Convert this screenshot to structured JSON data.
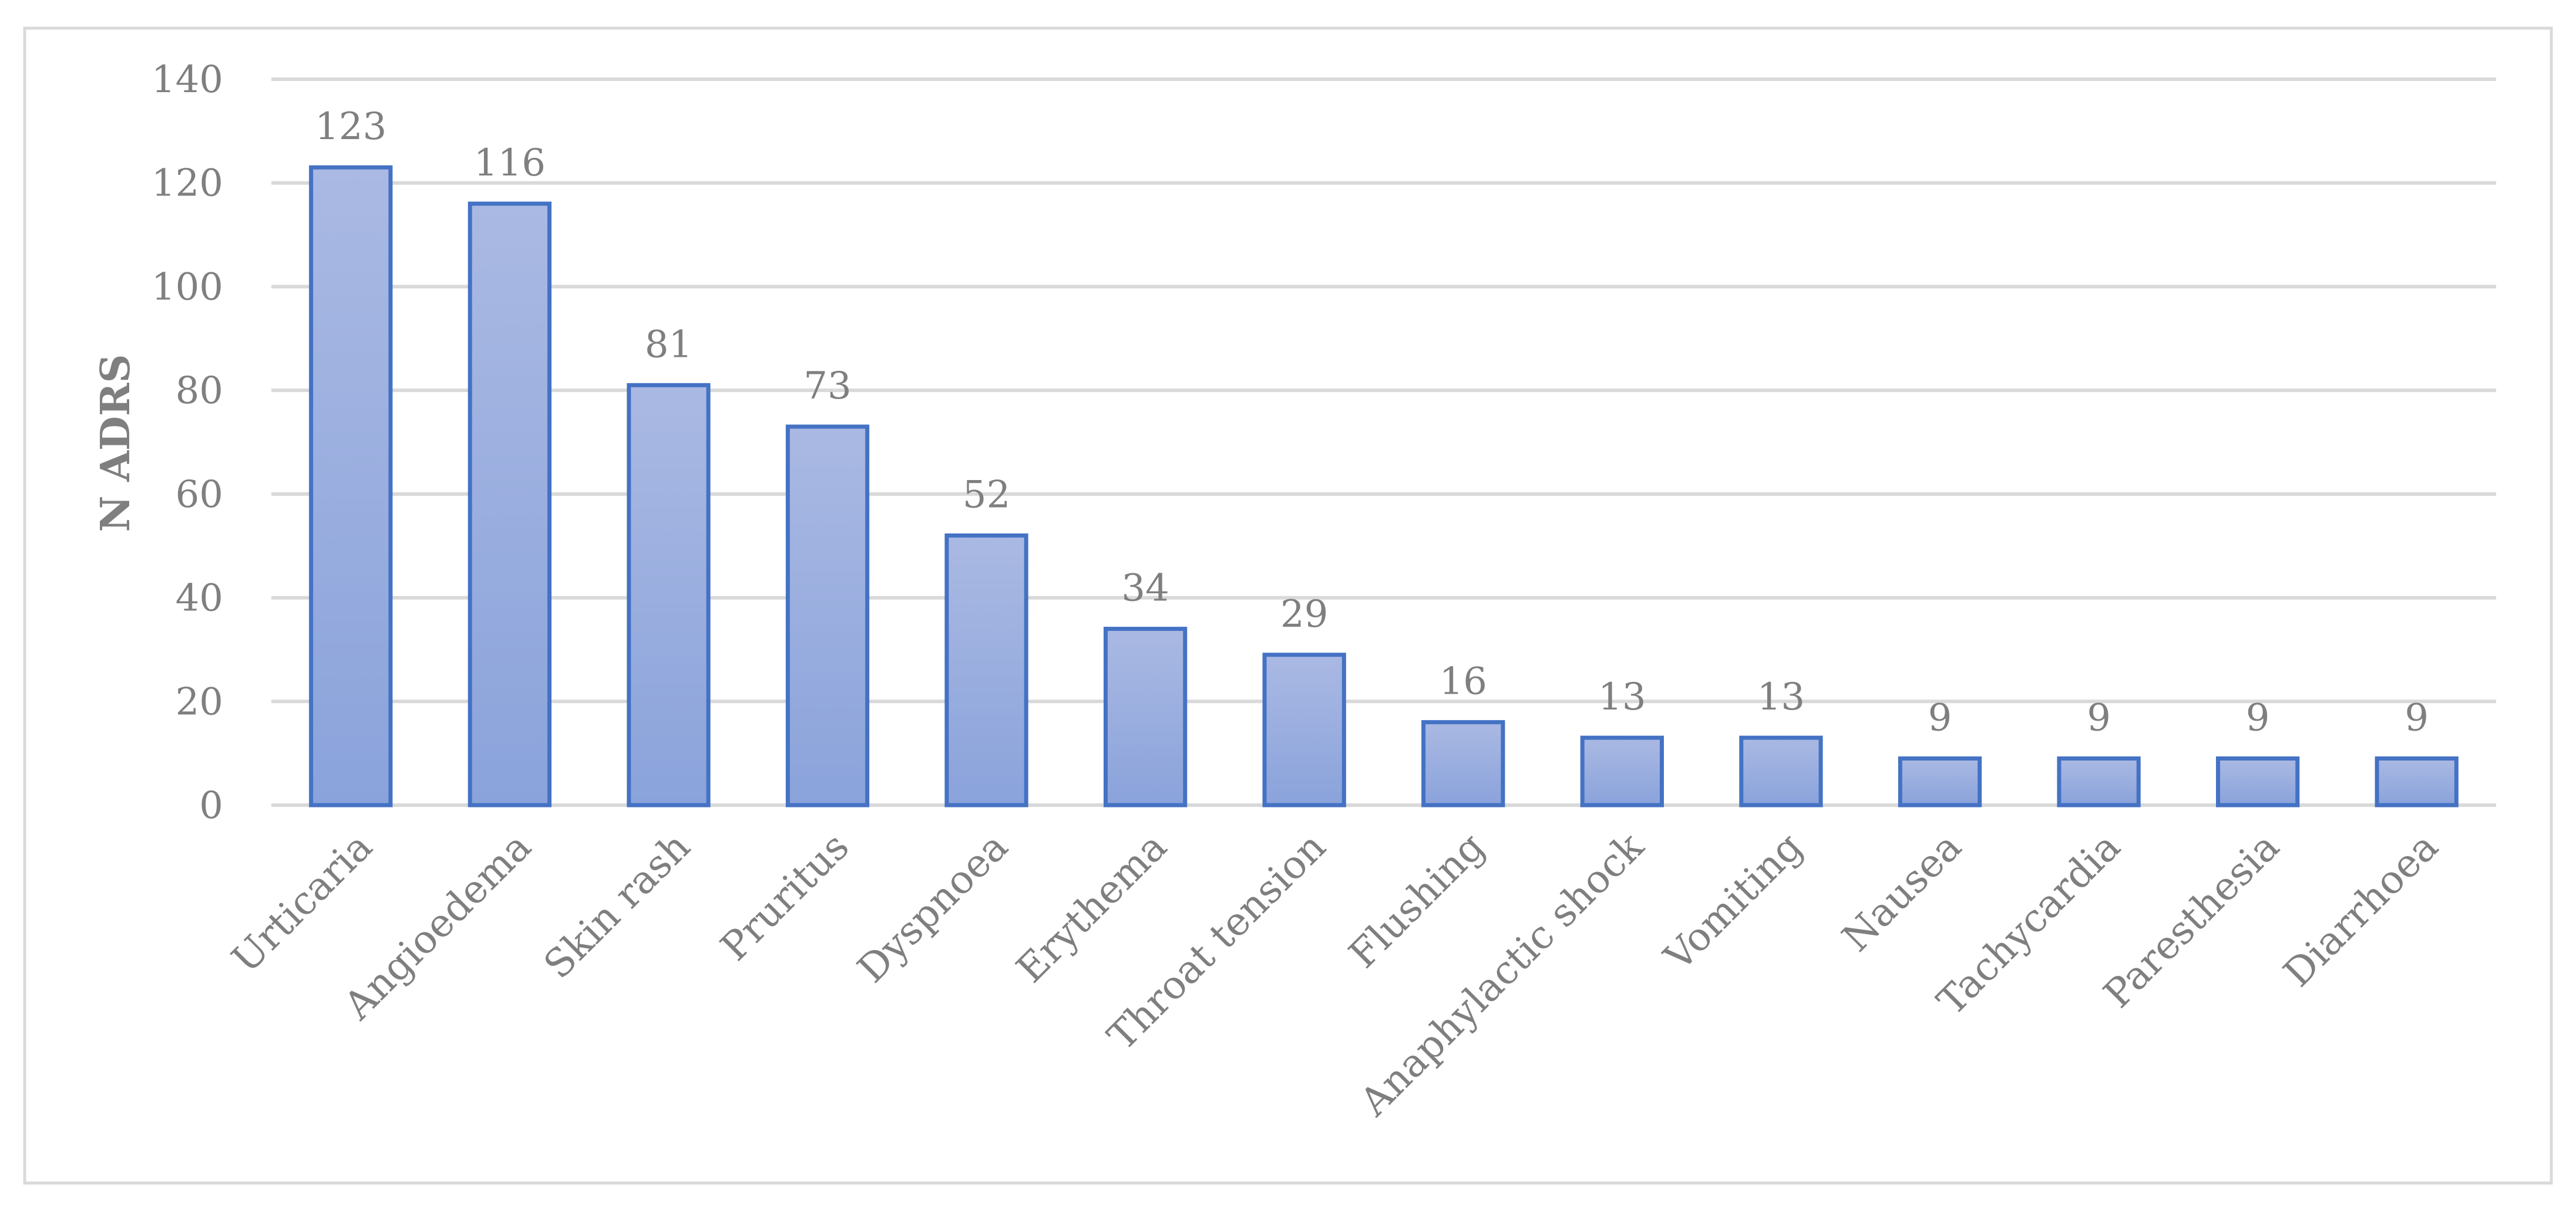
{
  "chart_data": {
    "type": "bar",
    "categories": [
      "Urticaria",
      "Angioedema",
      "Skin rash",
      "Pruritus",
      "Dyspnoea",
      "Erythema",
      "Throat tension",
      "Flushing",
      "Anaphylactic shock",
      "Vomiting",
      "Nausea",
      "Tachycardia",
      "Paresthesia",
      "Diarrhoea"
    ],
    "values": [
      123,
      116,
      81,
      73,
      52,
      34,
      29,
      16,
      13,
      13,
      9,
      9,
      9,
      9
    ],
    "data_labels": [
      "123",
      "116",
      "81",
      "73",
      "52",
      "34",
      "29",
      "16",
      "13",
      "13",
      "9",
      "9",
      "9",
      "9"
    ],
    "ylabel": "N ADRS",
    "xlabel": "",
    "title": "",
    "ylim": [
      0,
      140
    ],
    "yticks": [
      0,
      20,
      40,
      60,
      80,
      100,
      120,
      140
    ],
    "ytick_labels": [
      "0",
      "20",
      "40",
      "60",
      "80",
      "100",
      "120",
      "140"
    ],
    "grid": true,
    "legend": "none",
    "colors": {
      "bar_fill_top": "#aab9e3",
      "bar_fill_bottom": "#8aa3db",
      "bar_edge": "#4472c4",
      "grid": "#d9d9d9",
      "text": "#7f7f7f",
      "frame": "#d9d9d9"
    }
  }
}
